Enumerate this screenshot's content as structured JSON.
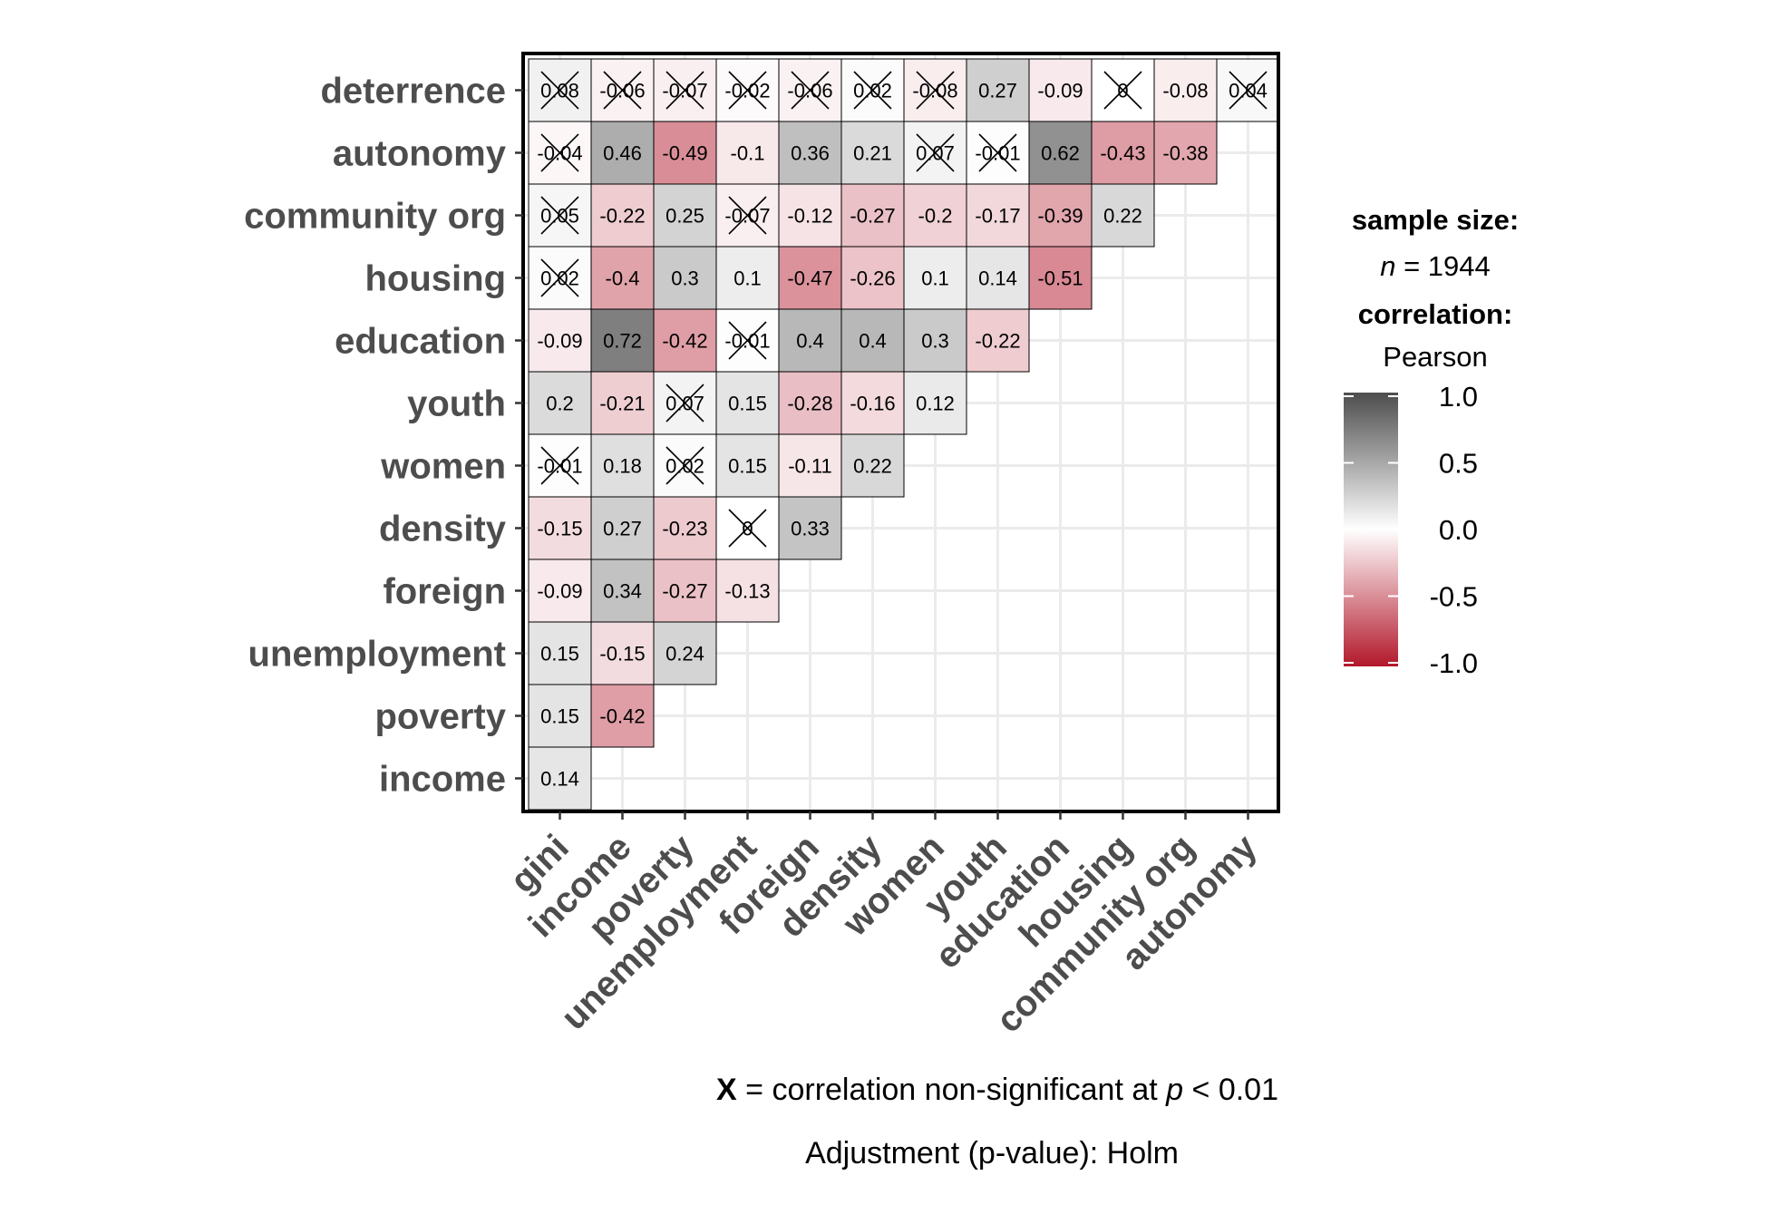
{
  "chart_data": {
    "type": "heatmap",
    "subtype": "lower-triangle correlation matrix",
    "x_categories": [
      "gini",
      "income",
      "poverty",
      "unemployment",
      "foreign",
      "density",
      "women",
      "youth",
      "education",
      "housing",
      "community org",
      "autonomy"
    ],
    "y_categories": [
      "income",
      "poverty",
      "unemployment",
      "foreign",
      "density",
      "women",
      "youth",
      "education",
      "housing",
      "community org",
      "autonomy",
      "deterrence"
    ],
    "rows": [
      {
        "variable": "deterrence",
        "labels": [
          "0.08",
          "-0.06",
          "-0.07",
          "-0.02",
          "-0.06",
          "0.02",
          "-0.08",
          "0.27",
          "-0.09",
          "0",
          "-0.08",
          "0.04"
        ],
        "values": [
          0.08,
          -0.06,
          -0.07,
          -0.02,
          -0.06,
          0.02,
          -0.08,
          0.27,
          -0.09,
          0,
          -0.08,
          0.04
        ],
        "non_significant": [
          true,
          true,
          true,
          true,
          true,
          true,
          true,
          false,
          false,
          true,
          false,
          true
        ]
      },
      {
        "variable": "autonomy",
        "labels": [
          "-0.04",
          "0.46",
          "-0.49",
          "-0.1",
          "0.36",
          "0.21",
          "0.07",
          "-0.01",
          "0.62",
          "-0.43",
          "-0.38"
        ],
        "values": [
          -0.04,
          0.46,
          -0.49,
          -0.1,
          0.36,
          0.21,
          0.07,
          -0.01,
          0.62,
          -0.43,
          -0.38
        ],
        "non_significant": [
          true,
          false,
          false,
          false,
          false,
          false,
          true,
          true,
          false,
          false,
          false
        ]
      },
      {
        "variable": "community org",
        "labels": [
          "0.05",
          "-0.22",
          "0.25",
          "-0.07",
          "-0.12",
          "-0.27",
          "-0.2",
          "-0.17",
          "-0.39",
          "0.22"
        ],
        "values": [
          0.05,
          -0.22,
          0.25,
          -0.07,
          -0.12,
          -0.27,
          -0.2,
          -0.17,
          -0.39,
          0.22
        ],
        "non_significant": [
          true,
          false,
          false,
          true,
          false,
          false,
          false,
          false,
          false,
          false
        ]
      },
      {
        "variable": "housing",
        "labels": [
          "0.02",
          "-0.4",
          "0.3",
          "0.1",
          "-0.47",
          "-0.26",
          "0.1",
          "0.14",
          "-0.51"
        ],
        "values": [
          0.02,
          -0.4,
          0.3,
          0.1,
          -0.47,
          -0.26,
          0.1,
          0.14,
          -0.51
        ],
        "non_significant": [
          true,
          false,
          false,
          false,
          false,
          false,
          false,
          false,
          false
        ]
      },
      {
        "variable": "education",
        "labels": [
          "-0.09",
          "0.72",
          "-0.42",
          "-0.01",
          "0.4",
          "0.4",
          "0.3",
          "-0.22"
        ],
        "values": [
          -0.09,
          0.72,
          -0.42,
          -0.01,
          0.4,
          0.4,
          0.3,
          -0.22
        ],
        "non_significant": [
          false,
          false,
          false,
          true,
          false,
          false,
          false,
          false
        ]
      },
      {
        "variable": "youth",
        "labels": [
          "0.2",
          "-0.21",
          "0.07",
          "0.15",
          "-0.28",
          "-0.16",
          "0.12"
        ],
        "values": [
          0.2,
          -0.21,
          0.07,
          0.15,
          -0.28,
          -0.16,
          0.12
        ],
        "non_significant": [
          false,
          false,
          true,
          false,
          false,
          false,
          false
        ]
      },
      {
        "variable": "women",
        "labels": [
          "-0.01",
          "0.18",
          "0.02",
          "0.15",
          "-0.11",
          "0.22"
        ],
        "values": [
          -0.01,
          0.18,
          0.02,
          0.15,
          -0.11,
          0.22
        ],
        "non_significant": [
          true,
          false,
          true,
          false,
          false,
          false
        ]
      },
      {
        "variable": "density",
        "labels": [
          "-0.15",
          "0.27",
          "-0.23",
          "0",
          "0.33"
        ],
        "values": [
          -0.15,
          0.27,
          -0.23,
          0,
          0.33
        ],
        "non_significant": [
          false,
          false,
          false,
          true,
          false
        ]
      },
      {
        "variable": "foreign",
        "labels": [
          "-0.09",
          "0.34",
          "-0.27",
          "-0.13"
        ],
        "values": [
          -0.09,
          0.34,
          -0.27,
          -0.13
        ],
        "non_significant": [
          false,
          false,
          false,
          false
        ]
      },
      {
        "variable": "unemployment",
        "labels": [
          "0.15",
          "-0.15",
          "0.24"
        ],
        "values": [
          0.15,
          -0.15,
          0.24
        ],
        "non_significant": [
          false,
          false,
          false
        ]
      },
      {
        "variable": "poverty",
        "labels": [
          "0.15",
          "-0.42"
        ],
        "values": [
          0.15,
          -0.42
        ],
        "non_significant": [
          false,
          false
        ]
      },
      {
        "variable": "income",
        "labels": [
          "0.14"
        ],
        "values": [
          0.14
        ],
        "non_significant": [
          false
        ]
      }
    ],
    "color_scale": {
      "low": "#b2182b",
      "mid": "#ffffff",
      "high": "#4d4d4d",
      "limits": [
        -1,
        1
      ],
      "breaks": [
        "1.0",
        "0.5",
        "0.0",
        "-0.5",
        "-1.0"
      ]
    },
    "legend": {
      "position": "right",
      "sample_size_title": "sample size:",
      "n_symbol": "n",
      "n_text": " = 1944",
      "correlation_title": "correlation:",
      "correlation_type": "Pearson"
    },
    "caption": {
      "x_symbol": "X",
      "line1_a": " = correlation non-significant at ",
      "p_symbol": "p",
      "line1_b": " < 0.01",
      "line2": "Adjustment (p-value): Holm"
    },
    "grid": true
  }
}
